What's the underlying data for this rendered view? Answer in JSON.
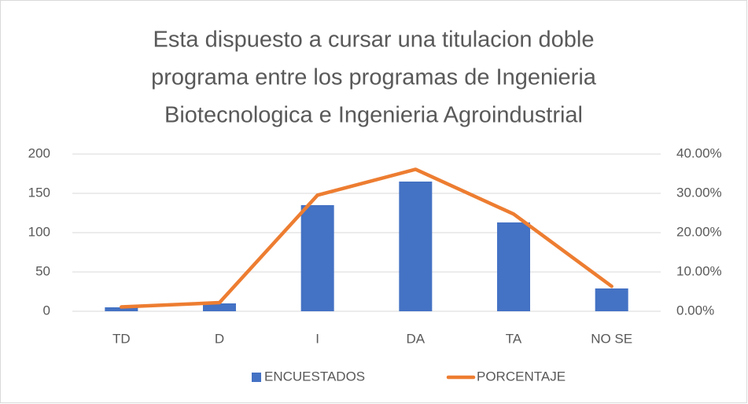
{
  "chart_data": {
    "type": "bar_line",
    "title": [
      "Esta dispuesto a cursar una titulacion doble",
      "programa entre los programas de Ingenieria",
      "Biotecnologica e Ingenieria Agroindustrial"
    ],
    "categories": [
      "TD",
      "D",
      "I",
      "DA",
      "TA",
      "NO SE"
    ],
    "series": [
      {
        "name": "ENCUESTADOS",
        "type": "bar",
        "color": "#4472c4",
        "values": [
          5,
          10,
          135,
          165,
          113,
          29
        ]
      },
      {
        "name": "PORCENTAJE",
        "type": "line",
        "axis": "y2",
        "color": "#ed7d31",
        "values": [
          0.0109,
          0.0219,
          0.2954,
          0.3611,
          0.2473,
          0.0635
        ]
      }
    ],
    "ylim": [
      0,
      200
    ],
    "yticks": [
      0,
      50,
      100,
      150,
      200
    ],
    "y2lim": [
      0,
      0.4
    ],
    "y2ticks": [
      {
        "value": 0,
        "label": "0.00%"
      },
      {
        "value": 0.1,
        "label": "10.00%"
      },
      {
        "value": 0.2,
        "label": "20.00%"
      },
      {
        "value": 0.3,
        "label": "30.00%"
      },
      {
        "value": 0.4,
        "label": "40.00%"
      }
    ],
    "grid": true,
    "legend": "bottom"
  }
}
